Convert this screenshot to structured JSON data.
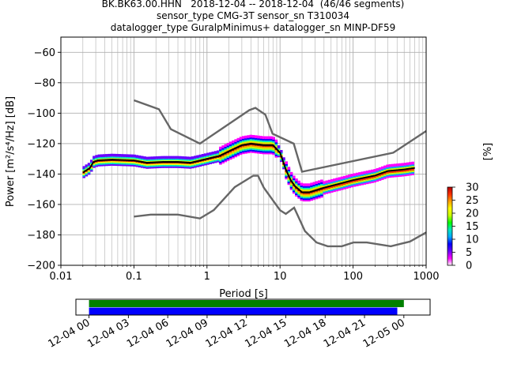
{
  "title_lines": [
    "BK.BK63.00.HHN   2018-12-04 -- 2018-12-04  (46/46 segments)",
    "sensor_type CMG-3T sensor_sn T310034",
    "datalogger_type GuralpMinimus+ datalogger_sn MINP-DF59"
  ],
  "chart_data": [
    {
      "type": "heatmap",
      "xlabel": "Period [s]",
      "ylabel": "Power [m²/s⁴/Hz] [dB]",
      "xscale": "log",
      "xlim": [
        0.01,
        1000
      ],
      "ylim": [
        -200,
        -50
      ],
      "xticks": [
        0.01,
        0.1,
        1,
        10,
        100,
        1000
      ],
      "xtick_labels": [
        "0.01",
        "0.1",
        "1",
        "10",
        "100",
        "1000"
      ],
      "yticks": [
        -200,
        -180,
        -160,
        -140,
        -120,
        -100,
        -80,
        -60
      ],
      "ytick_labels": [
        "−200",
        "−180",
        "−160",
        "−140",
        "−120",
        "−100",
        "−80",
        "−60"
      ],
      "grid": true,
      "colorbar": {
        "label": "[%]",
        "ticks": [
          0,
          5,
          10,
          15,
          20,
          25,
          30
        ],
        "tick_labels": [
          "0",
          "5",
          "10",
          "15",
          "20",
          "25",
          "30"
        ],
        "range": [
          0,
          30
        ],
        "colors": [
          "#ffffff",
          "#ff00ff",
          "#6a00ff",
          "#0000ff",
          "#00a8ff",
          "#00e8c0",
          "#00ff00",
          "#c8ff00",
          "#ffff00",
          "#ffa000",
          "#ff3000",
          "#b40000"
        ]
      },
      "noise_models": {
        "high": [
          [
            0.1,
            -91.5
          ],
          [
            0.22,
            -97.4
          ],
          [
            0.32,
            -110.5
          ],
          [
            0.8,
            -120
          ],
          [
            3.8,
            -98
          ],
          [
            4.6,
            -96.5
          ],
          [
            6.3,
            -101
          ],
          [
            7.9,
            -113.5
          ],
          [
            15.4,
            -120
          ],
          [
            20,
            -138.5
          ],
          [
            354.8,
            -126
          ],
          [
            10000,
            -80
          ]
        ],
        "low": [
          [
            0.1,
            -168
          ],
          [
            0.17,
            -166.7
          ],
          [
            0.4,
            -166.7
          ],
          [
            0.8,
            -169.2
          ],
          [
            1.24,
            -163.7
          ],
          [
            2.4,
            -148.6
          ],
          [
            4.3,
            -141.1
          ],
          [
            5,
            -141.1
          ],
          [
            6,
            -149
          ],
          [
            10,
            -163.8
          ],
          [
            12,
            -166.2
          ],
          [
            15.6,
            -162.1
          ],
          [
            21.9,
            -177.5
          ],
          [
            31.6,
            -185
          ],
          [
            45,
            -187.5
          ],
          [
            70,
            -187.5
          ],
          [
            101,
            -185
          ],
          [
            154,
            -185
          ],
          [
            328,
            -187.5
          ],
          [
            600,
            -184.4
          ],
          [
            10000,
            -151.5
          ]
        ]
      },
      "mode_line": [
        [
          0.02,
          -139
        ],
        [
          0.025,
          -136
        ],
        [
          0.028,
          -132
        ],
        [
          0.032,
          -131
        ],
        [
          0.05,
          -130.5
        ],
        [
          0.1,
          -131
        ],
        [
          0.15,
          -132.5
        ],
        [
          0.25,
          -132
        ],
        [
          0.4,
          -132
        ],
        [
          0.6,
          -132.5
        ],
        [
          1,
          -130
        ],
        [
          1.5,
          -128
        ],
        [
          2,
          -125
        ],
        [
          3,
          -121
        ],
        [
          4,
          -120
        ],
        [
          6,
          -121
        ],
        [
          8,
          -121
        ],
        [
          10,
          -126
        ],
        [
          12,
          -137
        ],
        [
          14,
          -144
        ],
        [
          16,
          -148
        ],
        [
          20,
          -152
        ],
        [
          25,
          -152
        ],
        [
          40,
          -149
        ],
        [
          70,
          -146
        ],
        [
          100,
          -144
        ],
        [
          200,
          -141
        ],
        [
          300,
          -138
        ],
        [
          500,
          -137
        ],
        [
          700,
          -136
        ]
      ]
    },
    {
      "type": "timeline",
      "xlim": [
        "2018-12-03 23:00",
        "2018-12-05 02:00"
      ],
      "tick_labels": [
        "12-04 00",
        "12-04 03",
        "12-04 06",
        "12-04 09",
        "12-04 12",
        "12-04 15",
        "12-04 18",
        "12-04 21",
        "12-05 00"
      ],
      "tick_values": [
        "2018-12-04 00:00",
        "2018-12-04 03:00",
        "2018-12-04 06:00",
        "2018-12-04 09:00",
        "2018-12-04 12:00",
        "2018-12-04 15:00",
        "2018-12-04 18:00",
        "2018-12-04 21:00",
        "2018-12-05 00:00"
      ],
      "bars": [
        {
          "color": "#008000",
          "start": "2018-12-04 00:00",
          "end": "2018-12-05 00:00"
        },
        {
          "color": "#0000ff",
          "start": "2018-12-04 00:00",
          "end": "2018-12-04 23:30"
        }
      ]
    }
  ]
}
